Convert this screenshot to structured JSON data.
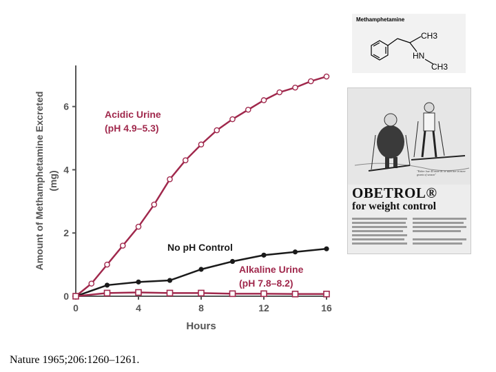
{
  "citation": "Nature 1965;206:1260–1261.",
  "structure": {
    "title": "Methamphetamine",
    "labels": {
      "ch3_top": "CH3",
      "hn": "HN",
      "ch3_bottom": "CH3"
    }
  },
  "advertisement": {
    "brand": "OBETROL®",
    "tagline": "for weight control",
    "caption": "\"Either lose 45 more lb. or start her in more grunts of season\""
  },
  "colors": {
    "acidic": "#a0284c",
    "control": "#1a1a1a",
    "alkaline": "#a0284c",
    "axis": "#555555",
    "label": "#555555"
  },
  "chart_data": {
    "type": "line",
    "xlabel": "Hours",
    "ylabel": "Amount of Methamphetamine Excreted (mg)",
    "xlim": [
      0,
      16
    ],
    "ylim": [
      0,
      7.3
    ],
    "xticks": [
      0,
      4,
      8,
      12,
      16
    ],
    "yticks": [
      0,
      2,
      4,
      6
    ],
    "series": [
      {
        "name": "Acidic Urine",
        "label_lines": [
          "Acidic Urine",
          "(pH 4.9–5.3)"
        ],
        "marker": "open-circle",
        "color": "#a0284c",
        "x": [
          0,
          1,
          2,
          3,
          4,
          5,
          6,
          7,
          8,
          9,
          10,
          11,
          12,
          13,
          14,
          15,
          16
        ],
        "y": [
          0,
          0.4,
          1.0,
          1.6,
          2.2,
          2.9,
          3.7,
          4.3,
          4.8,
          5.25,
          5.6,
          5.9,
          6.2,
          6.45,
          6.6,
          6.8,
          6.95
        ]
      },
      {
        "name": "No pH Control",
        "label_lines": [
          "No pH Control"
        ],
        "marker": "filled-circle",
        "color": "#1a1a1a",
        "x": [
          0,
          2,
          4,
          6,
          8,
          10,
          12,
          14,
          16
        ],
        "y": [
          0,
          0.35,
          0.45,
          0.5,
          0.85,
          1.1,
          1.3,
          1.4,
          1.5
        ]
      },
      {
        "name": "Alkaline Urine",
        "label_lines": [
          "Alkaline Urine",
          "(pH 7.8–8.2)"
        ],
        "marker": "open-square",
        "color": "#a0284c",
        "x": [
          0,
          2,
          4,
          6,
          8,
          10,
          12,
          14,
          16
        ],
        "y": [
          0,
          0.1,
          0.12,
          0.1,
          0.1,
          0.08,
          0.08,
          0.07,
          0.07
        ]
      }
    ]
  }
}
